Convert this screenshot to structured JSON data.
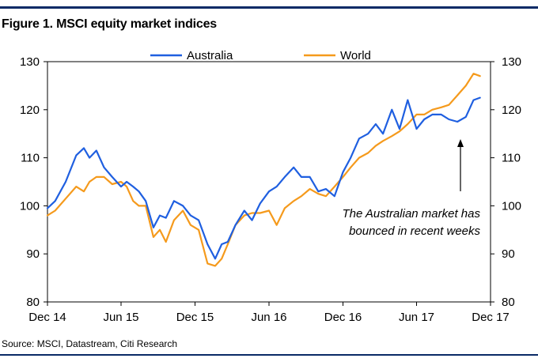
{
  "title": "Figure 1. MSCI equity market indices",
  "source": "Source: MSCI, Datastream, Citi Research",
  "colors": {
    "australia": "#1f5fe0",
    "world": "#f59a1c",
    "rule": "#0a2a66"
  },
  "chart_data": {
    "type": "line",
    "title": "Figure 1. MSCI equity market indices",
    "xlabel": "",
    "ylabel": "",
    "ylim": [
      80,
      130
    ],
    "y_ticks_left": [
      80,
      90,
      100,
      110,
      120,
      130
    ],
    "y_ticks_right": [
      80,
      90,
      100,
      110,
      120,
      130
    ],
    "x_tick_labels": [
      "Dec 14",
      "Jun 15",
      "Dec 15",
      "Jun 16",
      "Dec 16",
      "Jun 17",
      "Dec 17"
    ],
    "legend": {
      "placement": "top-center",
      "entries": [
        "Australia",
        "World"
      ]
    },
    "grid": false,
    "annotation": {
      "lines": [
        "The Australian market has",
        "bounced in recent weeks"
      ],
      "arrow": true
    },
    "series": [
      {
        "name": "Australia",
        "color": "#1f5fe0",
        "x": [
          "2014-12-01",
          "2014-12-20",
          "2015-01-15",
          "2015-02-10",
          "2015-03-01",
          "2015-03-15",
          "2015-04-01",
          "2015-04-20",
          "2015-05-10",
          "2015-06-01",
          "2015-06-15",
          "2015-07-01",
          "2015-07-15",
          "2015-08-01",
          "2015-08-20",
          "2015-09-05",
          "2015-09-20",
          "2015-10-10",
          "2015-11-01",
          "2015-11-20",
          "2015-12-10",
          "2016-01-01",
          "2016-01-20",
          "2016-02-05",
          "2016-02-20",
          "2016-03-10",
          "2016-04-01",
          "2016-04-20",
          "2016-05-10",
          "2016-06-01",
          "2016-06-20",
          "2016-07-10",
          "2016-08-01",
          "2016-08-20",
          "2016-09-10",
          "2016-10-01",
          "2016-10-20",
          "2016-11-10",
          "2016-12-01",
          "2016-12-20",
          "2017-01-10",
          "2017-02-01",
          "2017-02-20",
          "2017-03-10",
          "2017-04-01",
          "2017-04-20",
          "2017-05-10",
          "2017-06-01",
          "2017-06-20",
          "2017-07-10",
          "2017-08-01",
          "2017-08-20",
          "2017-09-10",
          "2017-10-01",
          "2017-10-20",
          "2017-11-05"
        ],
        "y": [
          99.5,
          101,
          105,
          110.5,
          112,
          110,
          111.5,
          108,
          106,
          104,
          105,
          104,
          103,
          101,
          95.5,
          98,
          97.5,
          101,
          100,
          98,
          97,
          92,
          89,
          92,
          92.5,
          96,
          99,
          97,
          100.5,
          103,
          104,
          106,
          108,
          106,
          106,
          103,
          103.5,
          102,
          107,
          110,
          114,
          115,
          117,
          115,
          120,
          116,
          122,
          116,
          118,
          119,
          119,
          118,
          117.5,
          118.5,
          122,
          122.5
        ]
      },
      {
        "name": "World",
        "color": "#f59a1c",
        "x": [
          "2014-12-01",
          "2014-12-20",
          "2015-01-15",
          "2015-02-10",
          "2015-03-01",
          "2015-03-15",
          "2015-04-01",
          "2015-04-20",
          "2015-05-10",
          "2015-06-01",
          "2015-06-15",
          "2015-07-01",
          "2015-07-15",
          "2015-08-01",
          "2015-08-20",
          "2015-09-05",
          "2015-09-20",
          "2015-10-10",
          "2015-11-01",
          "2015-11-20",
          "2015-12-10",
          "2016-01-01",
          "2016-01-20",
          "2016-02-05",
          "2016-02-20",
          "2016-03-10",
          "2016-04-01",
          "2016-04-20",
          "2016-05-10",
          "2016-06-01",
          "2016-06-20",
          "2016-07-10",
          "2016-08-01",
          "2016-08-20",
          "2016-09-10",
          "2016-10-01",
          "2016-10-20",
          "2016-11-10",
          "2016-12-01",
          "2016-12-20",
          "2017-01-10",
          "2017-02-01",
          "2017-02-20",
          "2017-03-10",
          "2017-04-01",
          "2017-04-20",
          "2017-05-10",
          "2017-06-01",
          "2017-06-20",
          "2017-07-10",
          "2017-08-01",
          "2017-08-20",
          "2017-09-10",
          "2017-10-01",
          "2017-10-20",
          "2017-11-05"
        ],
        "y": [
          98,
          99,
          101.5,
          104,
          103,
          105,
          106,
          106,
          104.5,
          105,
          104,
          101,
          100,
          100,
          93.5,
          95,
          92.5,
          97,
          99,
          96,
          95,
          88,
          87.5,
          89,
          92,
          96,
          98,
          98.5,
          98.5,
          99,
          96,
          99.5,
          101,
          102,
          103.5,
          102.5,
          102,
          104,
          106,
          108,
          110,
          111,
          112.5,
          113.5,
          114.5,
          115.5,
          117,
          119,
          119,
          120,
          120.5,
          121,
          123,
          125,
          127.5,
          127
        ]
      }
    ]
  }
}
